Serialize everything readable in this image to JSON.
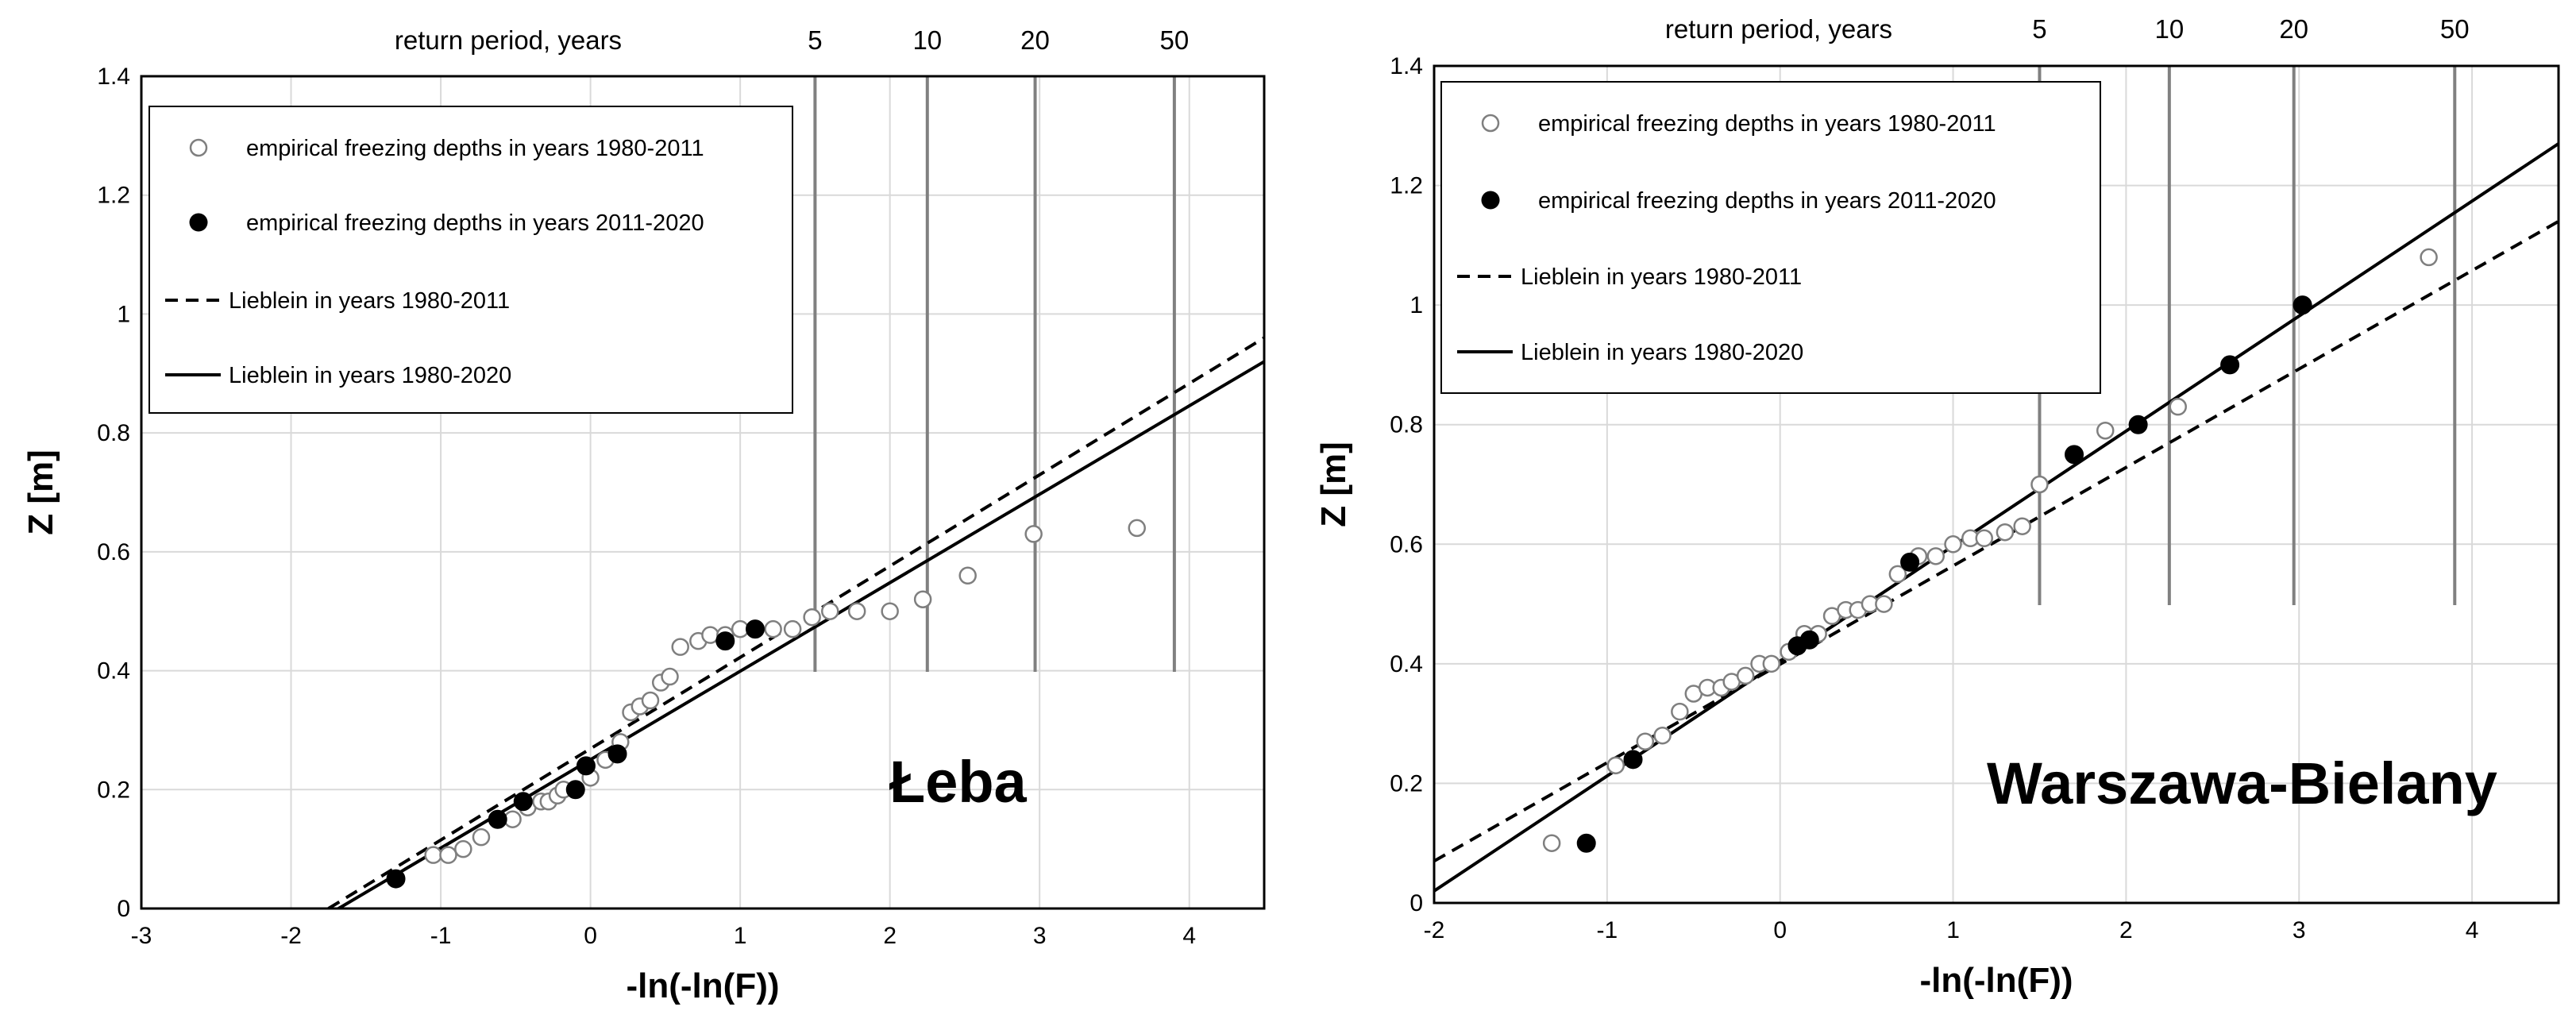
{
  "chart_data": [
    {
      "type": "scatter",
      "station": "Łeba",
      "xlabel": "-ln(-ln(F))",
      "ylabel": "Z [m]",
      "top_axis_label": "return period, years",
      "xlim": [
        -3,
        4.5
      ],
      "ylim": [
        0,
        1.4
      ],
      "xticks": [
        "-3",
        "-2",
        "-1",
        "0",
        "1",
        "2",
        "3",
        "4"
      ],
      "yticks": [
        "0",
        "0.2",
        "0.4",
        "0.6",
        "0.8",
        "1",
        "1.2",
        "1.4"
      ],
      "return_periods": [
        {
          "label": "5",
          "x": 1.5
        },
        {
          "label": "10",
          "x": 2.25
        },
        {
          "label": "20",
          "x": 2.97
        },
        {
          "label": "50",
          "x": 3.9
        }
      ],
      "legend": {
        "empirical_1980_2011": "empirical freezing depths in years 1980-2011",
        "empirical_2011_2020": "empirical freezing depths in years 2011-2020",
        "lieblein_1980_2011": "Lieblein in years 1980-2011",
        "lieblein_1980_2020": "Lieblein in years 1980-2020"
      },
      "series": [
        {
          "name": "empirical freezing depths in years 1980-2011",
          "marker": "open",
          "x": [
            -1.05,
            -0.95,
            -0.85,
            -0.73,
            -0.62,
            -0.52,
            -0.42,
            -0.33,
            -0.28,
            -0.22,
            -0.18,
            -0.1,
            0.0,
            0.1,
            0.2,
            0.27,
            0.33,
            0.4,
            0.47,
            0.53,
            0.6,
            0.72,
            0.8,
            0.9,
            1.0,
            1.22,
            1.35,
            1.48,
            1.6,
            1.78,
            2.0,
            2.22,
            2.52,
            2.96,
            3.65
          ],
          "y": [
            0.09,
            0.09,
            0.1,
            0.12,
            0.15,
            0.15,
            0.17,
            0.18,
            0.18,
            0.19,
            0.2,
            0.2,
            0.22,
            0.25,
            0.28,
            0.33,
            0.34,
            0.35,
            0.38,
            0.39,
            0.44,
            0.45,
            0.46,
            0.46,
            0.47,
            0.47,
            0.47,
            0.49,
            0.5,
            0.5,
            0.5,
            0.52,
            0.56,
            0.63,
            0.64
          ]
        },
        {
          "name": "empirical freezing depths in years 2011-2020",
          "marker": "filled",
          "x": [
            -1.3,
            -0.62,
            -0.45,
            -0.1,
            -0.03,
            0.18,
            0.9,
            1.1
          ],
          "y": [
            0.05,
            0.15,
            0.18,
            0.2,
            0.24,
            0.26,
            0.45,
            0.47
          ]
        },
        {
          "name": "Lieblein in years 1980-2011",
          "style": "dashed",
          "x": [
            -1.75,
            4.5
          ],
          "y": [
            0.0,
            0.96
          ]
        },
        {
          "name": "Lieblein in years 1980-2020",
          "style": "solid",
          "x": [
            -1.75,
            4.5
          ],
          "y": [
            -0.01,
            0.92
          ]
        }
      ]
    },
    {
      "type": "scatter",
      "station": "Warszawa-Bielany",
      "xlabel": "-ln(-ln(F))",
      "ylabel": "Z [m]",
      "top_axis_label": "return period, years",
      "xlim": [
        -2,
        4.5
      ],
      "ylim": [
        0,
        1.4
      ],
      "xticks": [
        "-2",
        "-1",
        "0",
        "1",
        "2",
        "3",
        "4"
      ],
      "yticks": [
        "0",
        "0.2",
        "0.4",
        "0.6",
        "0.8",
        "1",
        "1.2",
        "1.4"
      ],
      "return_periods": [
        {
          "label": "5",
          "x": 1.5
        },
        {
          "label": "10",
          "x": 2.25
        },
        {
          "label": "20",
          "x": 2.97
        },
        {
          "label": "50",
          "x": 3.9
        }
      ],
      "legend": {
        "empirical_1980_2011": "empirical freezing depths in years 1980-2011",
        "empirical_2011_2020": "empirical freezing depths in years 2011-2020",
        "lieblein_1980_2011": "Lieblein in years 1980-2011",
        "lieblein_1980_2020": "Lieblein in years 1980-2020"
      },
      "series": [
        {
          "name": "empirical freezing depths in years 1980-2011",
          "marker": "open",
          "x": [
            -1.32,
            -0.95,
            -0.78,
            -0.68,
            -0.58,
            -0.5,
            -0.42,
            -0.34,
            -0.28,
            -0.2,
            -0.12,
            -0.05,
            0.05,
            0.14,
            0.22,
            0.3,
            0.38,
            0.45,
            0.52,
            0.6,
            0.68,
            0.8,
            0.9,
            1.0,
            1.1,
            1.18,
            1.3,
            1.4,
            1.5,
            1.88,
            2.3,
            3.75
          ],
          "y": [
            0.1,
            0.23,
            0.27,
            0.28,
            0.32,
            0.35,
            0.36,
            0.36,
            0.37,
            0.38,
            0.4,
            0.4,
            0.42,
            0.45,
            0.45,
            0.48,
            0.49,
            0.49,
            0.5,
            0.5,
            0.55,
            0.58,
            0.58,
            0.6,
            0.61,
            0.61,
            0.62,
            0.63,
            0.7,
            0.79,
            0.83,
            1.08
          ]
        },
        {
          "name": "empirical freezing depths in years 2011-2020",
          "marker": "filled",
          "x": [
            -1.12,
            -0.85,
            0.1,
            0.17,
            0.75,
            1.7,
            2.07,
            2.6,
            3.02
          ],
          "y": [
            0.1,
            0.24,
            0.43,
            0.44,
            0.57,
            0.75,
            0.8,
            0.9,
            1.0
          ]
        },
        {
          "name": "Lieblein in years 1980-2011",
          "style": "dashed",
          "x": [
            -2.0,
            4.5
          ],
          "y": [
            0.07,
            1.14
          ]
        },
        {
          "name": "Lieblein in years 1980-2020",
          "style": "solid",
          "x": [
            -2.0,
            4.5
          ],
          "y": [
            0.02,
            1.27
          ]
        }
      ]
    }
  ]
}
